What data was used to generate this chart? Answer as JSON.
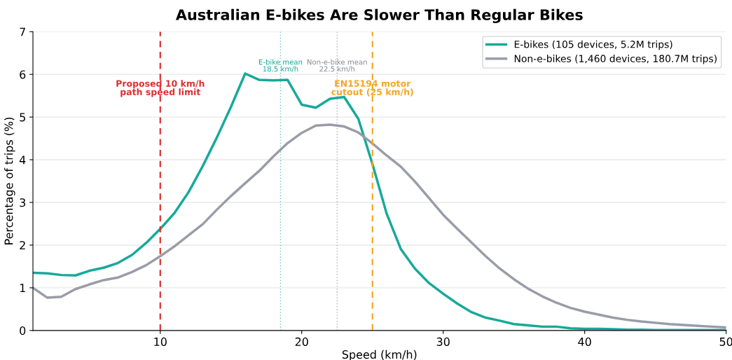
{
  "chart_data": {
    "type": "line",
    "title": "Australian E-bikes Are Slower Than Regular Bikes",
    "xlabel": "Speed (km/h)",
    "ylabel": "Percentage of trips (%)",
    "x": [
      1,
      2,
      3,
      4,
      5,
      6,
      7,
      8,
      9,
      10,
      11,
      12,
      13,
      14,
      15,
      16,
      17,
      18,
      19,
      20,
      21,
      22,
      23,
      24,
      25,
      26,
      27,
      28,
      29,
      30,
      31,
      32,
      33,
      34,
      35,
      36,
      37,
      38,
      39,
      40,
      41,
      42,
      43,
      44,
      45,
      46,
      47,
      48,
      49,
      50
    ],
    "series": [
      {
        "name": "E-bikes (105 devices, 5.2M trips)",
        "color": "#17a99a",
        "values": [
          1.35,
          1.34,
          1.3,
          1.29,
          1.4,
          1.47,
          1.58,
          1.77,
          2.05,
          2.38,
          2.75,
          3.24,
          3.85,
          4.52,
          5.24,
          6.02,
          5.87,
          5.86,
          5.87,
          5.29,
          5.22,
          5.43,
          5.47,
          4.96,
          3.9,
          2.74,
          1.91,
          1.45,
          1.11,
          0.86,
          0.63,
          0.43,
          0.3,
          0.23,
          0.15,
          0.12,
          0.09,
          0.09,
          0.05,
          0.04,
          0.04,
          0.03,
          0.02,
          0.02,
          0.01,
          0.01,
          0.01,
          0.01,
          0.01,
          0.01
        ]
      },
      {
        "name": "Non-e-bikes (1,460 devices, 180.7M trips)",
        "color": "#9a9ca8",
        "values": [
          1.0,
          0.77,
          0.79,
          0.97,
          1.08,
          1.18,
          1.24,
          1.37,
          1.53,
          1.74,
          1.97,
          2.23,
          2.49,
          2.83,
          3.15,
          3.45,
          3.74,
          4.08,
          4.39,
          4.63,
          4.8,
          4.82,
          4.78,
          4.64,
          4.38,
          4.1,
          3.84,
          3.49,
          3.1,
          2.71,
          2.38,
          2.06,
          1.74,
          1.45,
          1.2,
          0.98,
          0.8,
          0.65,
          0.53,
          0.44,
          0.37,
          0.3,
          0.25,
          0.21,
          0.18,
          0.15,
          0.13,
          0.11,
          0.09,
          0.07
        ]
      }
    ],
    "ref_lines": [
      {
        "axis": "x",
        "value": 10,
        "label": "Proposed 10 km/h\npath speed limit",
        "color": "#dc2f2f",
        "line_style": "dashed"
      },
      {
        "axis": "x",
        "value": 18.5,
        "label": "E-bike mean\n18.5 km/h",
        "color": "#17a99a",
        "line_style": "dotted"
      },
      {
        "axis": "x",
        "value": 22.5,
        "label": "Non-e-bike mean\n22.5 km/h",
        "color": "#888a96",
        "line_style": "dotted"
      },
      {
        "axis": "x",
        "value": 25,
        "label": "EN15194 motor\ncutout (25 km/h)",
        "color": "#f5a623",
        "line_style": "dashed"
      }
    ],
    "xlim": [
      1,
      50
    ],
    "xticks": [
      10,
      20,
      30,
      40,
      50
    ],
    "ylim": [
      0,
      7
    ],
    "yticks": [
      0,
      1,
      2,
      3,
      4,
      5,
      6,
      7
    ],
    "grid": "y",
    "legend": "top right",
    "marker": "none",
    "line_style": "solid"
  }
}
